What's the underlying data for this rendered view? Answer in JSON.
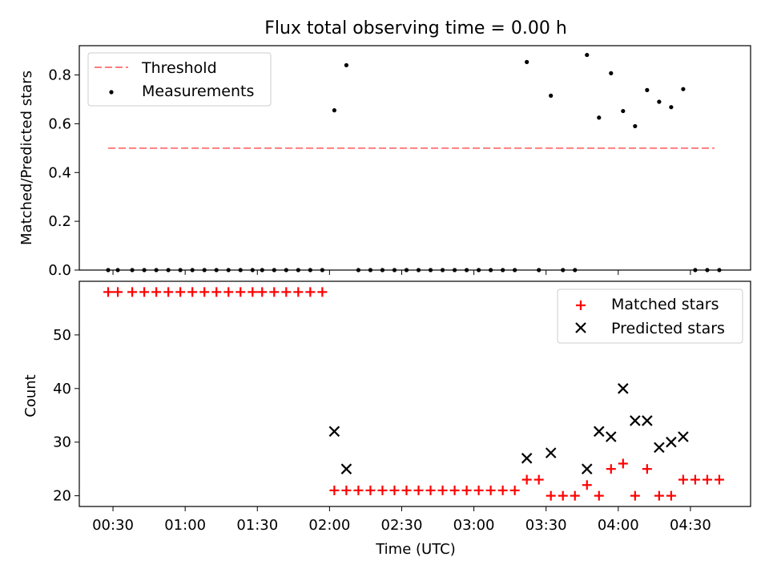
{
  "title": "Flux total observing time = 0.00 h",
  "chart_data": [
    {
      "type": "scatter",
      "ylabel": "Matched/Predicted stars",
      "ylim": [
        0,
        0.92
      ],
      "xlim": [
        "00:16",
        "04:55"
      ],
      "yticks": [
        0.0,
        0.2,
        0.4,
        0.6,
        0.8
      ],
      "ytick_labels": [
        "0.0",
        "0.2",
        "0.4",
        "0.6",
        "0.8"
      ],
      "legend_position": "top-left",
      "colors": {
        "threshold": "#ff7f7f",
        "measurements": "#000000"
      },
      "series": [
        {
          "name": "Threshold",
          "style": "dashed-line",
          "points": [
            [
              "00:28",
              0.5
            ],
            [
              "04:40",
              0.5
            ]
          ]
        },
        {
          "name": "Measurements",
          "style": "dot",
          "points": [
            [
              "00:28",
              0.0
            ],
            [
              "00:32",
              0.0
            ],
            [
              "00:38",
              0.0
            ],
            [
              "00:43",
              0.0
            ],
            [
              "00:48",
              0.0
            ],
            [
              "00:53",
              0.0
            ],
            [
              "00:58",
              0.0
            ],
            [
              "01:03",
              0.0
            ],
            [
              "01:08",
              0.0
            ],
            [
              "01:13",
              0.0
            ],
            [
              "01:18",
              0.0
            ],
            [
              "01:23",
              0.0
            ],
            [
              "01:28",
              0.0
            ],
            [
              "01:32",
              0.0
            ],
            [
              "01:37",
              0.0
            ],
            [
              "01:42",
              0.0
            ],
            [
              "01:47",
              0.0
            ],
            [
              "01:52",
              0.0
            ],
            [
              "01:57",
              0.0
            ],
            [
              "02:02",
              0.655
            ],
            [
              "02:07",
              0.84
            ],
            [
              "02:12",
              0.0
            ],
            [
              "02:17",
              0.0
            ],
            [
              "02:22",
              0.0
            ],
            [
              "02:27",
              0.0
            ],
            [
              "02:32",
              0.0
            ],
            [
              "02:37",
              0.0
            ],
            [
              "02:42",
              0.0
            ],
            [
              "02:47",
              0.0
            ],
            [
              "02:52",
              0.0
            ],
            [
              "02:57",
              0.0
            ],
            [
              "03:02",
              0.0
            ],
            [
              "03:07",
              0.0
            ],
            [
              "03:12",
              0.0
            ],
            [
              "03:17",
              0.0
            ],
            [
              "03:22",
              0.853
            ],
            [
              "03:27",
              0.0
            ],
            [
              "03:32",
              0.715
            ],
            [
              "03:37",
              0.0
            ],
            [
              "03:42",
              0.0
            ],
            [
              "03:47",
              0.882
            ],
            [
              "03:52",
              0.625
            ],
            [
              "03:57",
              0.807
            ],
            [
              "04:02",
              0.652
            ],
            [
              "04:07",
              0.59
            ],
            [
              "04:12",
              0.738
            ],
            [
              "04:17",
              0.69
            ],
            [
              "04:22",
              0.668
            ],
            [
              "04:27",
              0.742
            ],
            [
              "04:32",
              0.0
            ],
            [
              "04:37",
              0.0
            ],
            [
              "04:42",
              0.0
            ]
          ]
        }
      ]
    },
    {
      "type": "scatter",
      "xlabel": "Time (UTC)",
      "ylabel": "Count",
      "ylim": [
        18,
        60
      ],
      "xlim": [
        "00:16",
        "04:55"
      ],
      "yticks": [
        20,
        30,
        40,
        50
      ],
      "ytick_labels": [
        "20",
        "30",
        "40",
        "50"
      ],
      "xticks": [
        "00:30",
        "01:00",
        "01:30",
        "02:00",
        "02:30",
        "03:00",
        "03:30",
        "04:00",
        "04:30"
      ],
      "xtick_labels": [
        "00:30",
        "01:00",
        "01:30",
        "02:00",
        "02:30",
        "03:00",
        "03:30",
        "04:00",
        "04:30"
      ],
      "legend_position": "top-right",
      "colors": {
        "matched": "#ff0000",
        "predicted": "#000000"
      },
      "series": [
        {
          "name": "Matched stars",
          "marker": "plus",
          "points": [
            [
              "00:28",
              58
            ],
            [
              "00:32",
              58
            ],
            [
              "00:38",
              58
            ],
            [
              "00:43",
              58
            ],
            [
              "00:48",
              58
            ],
            [
              "00:53",
              58
            ],
            [
              "00:58",
              58
            ],
            [
              "01:03",
              58
            ],
            [
              "01:08",
              58
            ],
            [
              "01:13",
              58
            ],
            [
              "01:18",
              58
            ],
            [
              "01:23",
              58
            ],
            [
              "01:28",
              58
            ],
            [
              "01:32",
              58
            ],
            [
              "01:37",
              58
            ],
            [
              "01:42",
              58
            ],
            [
              "01:47",
              58
            ],
            [
              "01:52",
              58
            ],
            [
              "01:57",
              58
            ],
            [
              "02:02",
              21
            ],
            [
              "02:07",
              21
            ],
            [
              "02:12",
              21
            ],
            [
              "02:17",
              21
            ],
            [
              "02:22",
              21
            ],
            [
              "02:27",
              21
            ],
            [
              "02:32",
              21
            ],
            [
              "02:37",
              21
            ],
            [
              "02:42",
              21
            ],
            [
              "02:47",
              21
            ],
            [
              "02:52",
              21
            ],
            [
              "02:57",
              21
            ],
            [
              "03:02",
              21
            ],
            [
              "03:07",
              21
            ],
            [
              "03:12",
              21
            ],
            [
              "03:17",
              21
            ],
            [
              "03:22",
              23
            ],
            [
              "03:27",
              23
            ],
            [
              "03:32",
              20
            ],
            [
              "03:37",
              20
            ],
            [
              "03:42",
              20
            ],
            [
              "03:47",
              22
            ],
            [
              "03:52",
              20
            ],
            [
              "03:57",
              25
            ],
            [
              "04:02",
              26
            ],
            [
              "04:07",
              20
            ],
            [
              "04:12",
              25
            ],
            [
              "04:17",
              20
            ],
            [
              "04:22",
              20
            ],
            [
              "04:27",
              23
            ],
            [
              "04:32",
              23
            ],
            [
              "04:37",
              23
            ],
            [
              "04:42",
              23
            ]
          ]
        },
        {
          "name": "Predicted stars",
          "marker": "x",
          "points": [
            [
              "02:02",
              32
            ],
            [
              "02:07",
              25
            ],
            [
              "03:22",
              27
            ],
            [
              "03:32",
              28
            ],
            [
              "03:47",
              25
            ],
            [
              "03:52",
              32
            ],
            [
              "03:57",
              31
            ],
            [
              "04:02",
              40
            ],
            [
              "04:07",
              34
            ],
            [
              "04:12",
              34
            ],
            [
              "04:17",
              29
            ],
            [
              "04:22",
              30
            ],
            [
              "04:27",
              31
            ]
          ]
        }
      ]
    }
  ]
}
